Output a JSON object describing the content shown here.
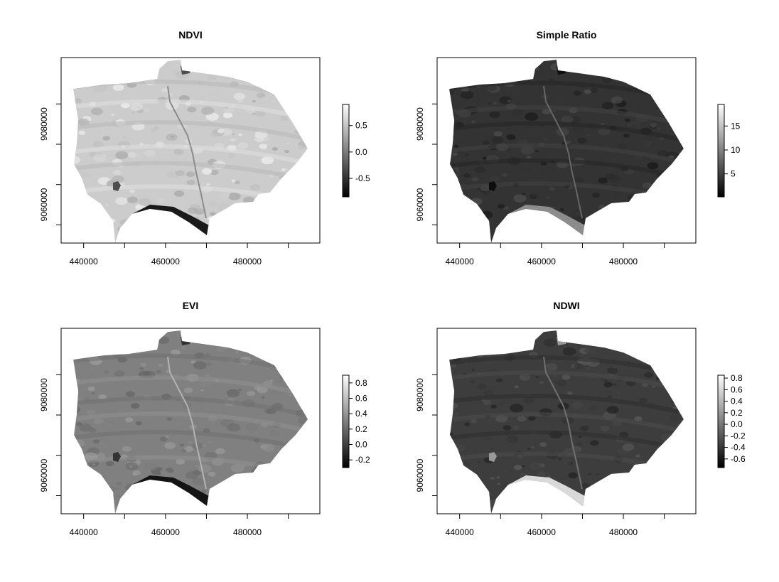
{
  "chart_data": [
    {
      "type": "heatmap",
      "title": "NDVI",
      "xlabel": "",
      "ylabel": "",
      "x_ticks": [
        440000,
        460000,
        480000
      ],
      "y_ticks": [
        9060000,
        9080000
      ],
      "x_range": [
        434500,
        497700
      ],
      "y_range": [
        9050500,
        9096500
      ],
      "colorbar": {
        "ticks": [
          -0.5,
          0.0,
          0.5
        ],
        "tick_labels": [
          "-0.5",
          "0.0",
          "0.5"
        ],
        "range": [
          -0.85,
          0.9
        ]
      },
      "palette": [
        "#000000",
        "#ffffff"
      ],
      "tone": {
        "base": 0.8,
        "south_edge": 0.1,
        "lake": 0.3,
        "spread": 0.08
      }
    },
    {
      "type": "heatmap",
      "title": "Simple Ratio",
      "xlabel": "",
      "ylabel": "",
      "x_ticks": [
        440000,
        460000,
        480000
      ],
      "y_ticks": [
        9060000,
        9080000
      ],
      "x_range": [
        434500,
        497700
      ],
      "y_range": [
        9050500,
        9096500
      ],
      "colorbar": {
        "ticks": [
          5,
          10,
          15
        ],
        "tick_labels": [
          "5",
          "10",
          "15"
        ],
        "range": [
          0.2,
          19.5
        ]
      },
      "palette": [
        "#000000",
        "#ffffff"
      ],
      "tone": {
        "base": 0.2,
        "south_edge": 0.55,
        "lake": 0.05,
        "spread": 0.06
      }
    },
    {
      "type": "heatmap",
      "title": "EVI",
      "xlabel": "",
      "ylabel": "",
      "x_ticks": [
        440000,
        460000,
        480000
      ],
      "y_ticks": [
        9060000,
        9080000
      ],
      "x_range": [
        434500,
        497700
      ],
      "y_range": [
        9050500,
        9096500
      ],
      "colorbar": {
        "ticks": [
          -0.2,
          0.0,
          0.2,
          0.4,
          0.6,
          0.8
        ],
        "tick_labels": [
          "-0.2",
          "0.0",
          "0.2",
          "0.4",
          "0.6",
          "0.8"
        ],
        "range": [
          -0.3,
          0.9
        ]
      },
      "palette": [
        "#000000",
        "#ffffff"
      ],
      "tone": {
        "base": 0.5,
        "south_edge": 0.08,
        "lake": 0.2,
        "spread": 0.06
      }
    },
    {
      "type": "heatmap",
      "title": "NDWI",
      "xlabel": "",
      "ylabel": "",
      "x_ticks": [
        440000,
        460000,
        480000
      ],
      "y_ticks": [
        9060000,
        9080000
      ],
      "x_range": [
        434500,
        497700
      ],
      "y_range": [
        9050500,
        9096500
      ],
      "colorbar": {
        "ticks": [
          -0.6,
          -0.4,
          -0.2,
          0.0,
          0.2,
          0.4,
          0.6,
          0.8
        ],
        "tick_labels": [
          "-0.6",
          "-0.4",
          "-0.2",
          "0.0",
          "0.2",
          "0.4",
          "0.6",
          "0.8"
        ],
        "range": [
          -0.75,
          0.85
        ]
      },
      "palette": [
        "#000000",
        "#ffffff"
      ],
      "tone": {
        "base": 0.24,
        "south_edge": 0.85,
        "lake": 0.6,
        "spread": 0.06
      }
    }
  ]
}
